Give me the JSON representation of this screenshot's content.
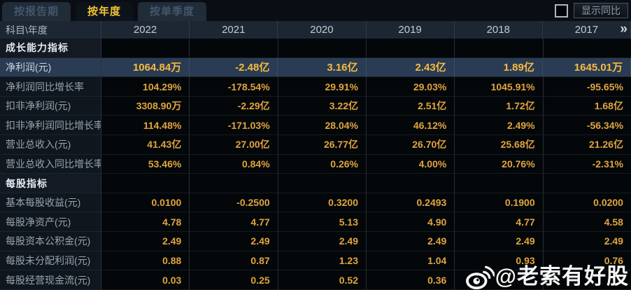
{
  "tabs": [
    {
      "label": "按报告期",
      "active": false
    },
    {
      "label": "按年度",
      "active": true
    },
    {
      "label": "按单季度",
      "active": false
    }
  ],
  "controls": {
    "show_yoy_label": "显示同比",
    "show_yoy_checked": false
  },
  "table": {
    "corner_header": "科目\\年度",
    "year_columns": [
      "2022",
      "2021",
      "2020",
      "2019",
      "2018",
      "2017"
    ],
    "more_icon": "»",
    "rows": [
      {
        "type": "section",
        "label": "成长能力指标",
        "values": [
          "",
          "",
          "",
          "",
          "",
          ""
        ]
      },
      {
        "type": "data",
        "highlight": true,
        "label": "净利润(元)",
        "values": [
          "1064.84万",
          "-2.48亿",
          "3.16亿",
          "2.43亿",
          "1.89亿",
          "1645.01万"
        ]
      },
      {
        "type": "data",
        "label": "净利润同比增长率",
        "values": [
          "104.29%",
          "-178.54%",
          "29.91%",
          "29.03%",
          "1045.91%",
          "-95.65%"
        ]
      },
      {
        "type": "data",
        "label": "扣非净利润(元)",
        "values": [
          "3308.90万",
          "-2.29亿",
          "3.22亿",
          "2.51亿",
          "1.72亿",
          "1.68亿"
        ]
      },
      {
        "type": "data",
        "label": "扣非净利润同比增长率",
        "values": [
          "114.48%",
          "-171.03%",
          "28.04%",
          "46.12%",
          "2.49%",
          "-56.34%"
        ]
      },
      {
        "type": "data",
        "label": "营业总收入(元)",
        "values": [
          "41.43亿",
          "27.00亿",
          "26.77亿",
          "26.70亿",
          "25.68亿",
          "21.26亿"
        ]
      },
      {
        "type": "data",
        "label": "营业总收入同比增长率",
        "values": [
          "53.46%",
          "0.84%",
          "0.26%",
          "4.00%",
          "20.76%",
          "-2.31%"
        ]
      },
      {
        "type": "section",
        "label": "每股指标",
        "values": [
          "",
          "",
          "",
          "",
          "",
          ""
        ]
      },
      {
        "type": "data",
        "label": "基本每股收益(元)",
        "values": [
          "0.0100",
          "-0.2500",
          "0.3200",
          "0.2493",
          "0.1900",
          "0.0200"
        ]
      },
      {
        "type": "data",
        "label": "每股净资产(元)",
        "values": [
          "4.78",
          "4.77",
          "5.13",
          "4.90",
          "4.77",
          "4.58"
        ]
      },
      {
        "type": "data",
        "label": "每股资本公积金(元)",
        "values": [
          "2.49",
          "2.49",
          "2.49",
          "2.49",
          "2.49",
          "2.49"
        ]
      },
      {
        "type": "data",
        "label": "每股未分配利润(元)",
        "values": [
          "0.88",
          "0.87",
          "1.23",
          "1.04",
          "0.93",
          "0.76"
        ]
      },
      {
        "type": "data",
        "label": "每股经营现金流(元)",
        "values": [
          "0.03",
          "0.25",
          "0.52",
          "0.36",
          "",
          ""
        ]
      }
    ]
  },
  "watermark": {
    "icon": "weibo-icon",
    "text": "@老索有好股"
  },
  "colors": {
    "accent_gold": "#f4c233",
    "value_gold": "#e0a53f",
    "highlight_row_bg": "#2a3c53",
    "header_row_bg": "#1d2733",
    "page_bg": "#0a0e14"
  }
}
